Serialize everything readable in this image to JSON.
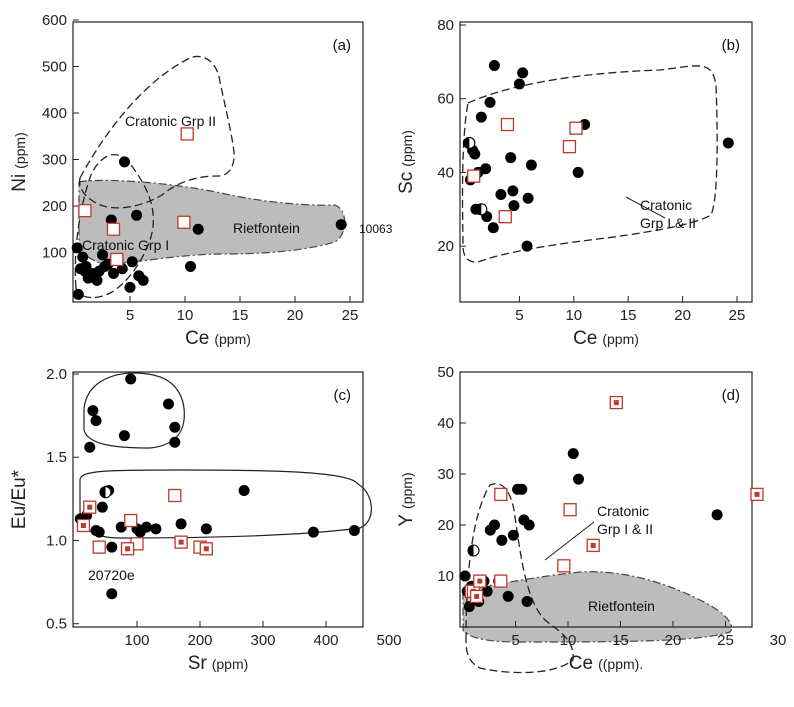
{
  "chart_data": [
    {
      "type": "scatter",
      "panel_label": "(a)",
      "x_label": "Ce",
      "x_unit": "(ppm)",
      "y_label": "Ni",
      "y_unit": "(ppm)",
      "xlim": [
        0,
        25
      ],
      "ylim": [
        0,
        600
      ],
      "xticks": [
        "5",
        "10",
        "15",
        "20",
        "25"
      ],
      "yticks": [
        "100",
        "200",
        "300",
        "400",
        "500",
        "600"
      ],
      "annotations": [
        "Cratonic Grp II",
        "Rietfontein",
        "Cratonic Grp I",
        "10063"
      ],
      "series": [
        {
          "marker": "filled-circle",
          "points": [
            [
              0.2,
              110
            ],
            [
              0.3,
              10
            ],
            [
              0.5,
              65
            ],
            [
              0.7,
              90
            ],
            [
              0.9,
              60
            ],
            [
              1.0,
              70
            ],
            [
              1.2,
              45
            ],
            [
              1.5,
              55
            ],
            [
              2.0,
              40
            ],
            [
              2.2,
              60
            ],
            [
              2.5,
              95
            ],
            [
              2.7,
              70
            ],
            [
              3.0,
              75
            ],
            [
              3.3,
              170
            ],
            [
              3.5,
              55
            ],
            [
              4.3,
              65
            ],
            [
              4.5,
              295
            ],
            [
              5.0,
              25
            ],
            [
              5.2,
              80
            ],
            [
              5.6,
              180
            ],
            [
              5.8,
              50
            ],
            [
              6.2,
              40
            ],
            [
              10.5,
              70
            ],
            [
              11.2,
              150
            ],
            [
              24.2,
              160
            ]
          ]
        },
        {
          "marker": "open-square",
          "points": [
            [
              0.9,
              190
            ],
            [
              3.5,
              150
            ],
            [
              3.8,
              85
            ],
            [
              9.9,
              165
            ],
            [
              10.2,
              355
            ]
          ]
        }
      ]
    },
    {
      "type": "scatter",
      "panel_label": "(b)",
      "x_label": "Ce",
      "x_unit": "(ppm)",
      "y_label": "Sc",
      "y_unit": "(ppm)",
      "xlim": [
        0,
        25
      ],
      "ylim": [
        10,
        80
      ],
      "xticks": [
        "5",
        "10",
        "15",
        "20",
        "25"
      ],
      "yticks": [
        "20",
        "40",
        "60",
        "80"
      ],
      "annotations": [
        "Cratonic",
        "Grp I & II"
      ],
      "series": [
        {
          "marker": "filled-circle",
          "points": [
            [
              0.3,
              48
            ],
            [
              0.5,
              38
            ],
            [
              0.7,
              46
            ],
            [
              0.9,
              45
            ],
            [
              1.0,
              30
            ],
            [
              1.2,
              40
            ],
            [
              1.5,
              55
            ],
            [
              1.9,
              41
            ],
            [
              2.0,
              28
            ],
            [
              2.3,
              59
            ],
            [
              2.6,
              25
            ],
            [
              2.7,
              69
            ],
            [
              3.3,
              34
            ],
            [
              4.2,
              44
            ],
            [
              4.4,
              35
            ],
            [
              4.5,
              31
            ],
            [
              5.0,
              64
            ],
            [
              5.3,
              67
            ],
            [
              5.7,
              20
            ],
            [
              5.8,
              33
            ],
            [
              6.1,
              42
            ],
            [
              10.4,
              40
            ],
            [
              11.0,
              53
            ],
            [
              24.2,
              48
            ]
          ]
        },
        {
          "marker": "half-circle",
          "points": [
            [
              0.4,
              48
            ],
            [
              1.5,
              30
            ]
          ]
        },
        {
          "marker": "open-square",
          "points": [
            [
              0.8,
              39
            ],
            [
              3.7,
              28
            ],
            [
              3.9,
              53
            ],
            [
              9.6,
              47
            ],
            [
              10.2,
              52
            ]
          ]
        }
      ]
    },
    {
      "type": "scatter",
      "panel_label": "(c)",
      "x_label": "Sr",
      "x_unit": "(ppm)",
      "y_label": "Eu/Eu*",
      "y_unit": "",
      "xlim": [
        0,
        500
      ],
      "ylim": [
        0.3,
        2.0
      ],
      "xticks": [
        "100",
        "200",
        "300",
        "400",
        "500"
      ],
      "yticks": [
        "0.5",
        "1.0",
        "1.5",
        "2.0"
      ],
      "annotations": [
        "20720e"
      ],
      "series": [
        {
          "marker": "filled-circle",
          "points": [
            [
              10,
              1.13
            ],
            [
              20,
              1.15
            ],
            [
              25,
              1.56
            ],
            [
              30,
              1.78
            ],
            [
              35,
              1.72
            ],
            [
              35,
              1.06
            ],
            [
              40,
              1.05
            ],
            [
              45,
              1.2
            ],
            [
              55,
              1.3
            ],
            [
              60,
              0.96
            ],
            [
              60,
              0.68
            ],
            [
              75,
              1.08
            ],
            [
              80,
              1.63
            ],
            [
              90,
              1.97
            ],
            [
              100,
              1.07
            ],
            [
              105,
              1.05
            ],
            [
              115,
              1.08
            ],
            [
              130,
              1.07
            ],
            [
              150,
              1.82
            ],
            [
              160,
              1.68
            ],
            [
              160,
              1.59
            ],
            [
              170,
              1.1
            ],
            [
              210,
              1.07
            ],
            [
              270,
              1.3
            ],
            [
              380,
              1.05
            ],
            [
              445,
              1.06
            ]
          ]
        },
        {
          "marker": "half-circle",
          "points": [
            [
              50,
              1.29
            ]
          ]
        },
        {
          "marker": "open-square",
          "points": [
            [
              40,
              0.96
            ],
            [
              90,
              1.12
            ],
            [
              100,
              0.98
            ],
            [
              160,
              1.27
            ],
            [
              200,
              0.96
            ]
          ]
        },
        {
          "marker": "dot-square",
          "points": [
            [
              15,
              1.09
            ],
            [
              25,
              1.2
            ],
            [
              85,
              0.95
            ],
            [
              170,
              0.99
            ],
            [
              210,
              0.95
            ]
          ]
        }
      ]
    },
    {
      "type": "scatter",
      "panel_label": "(d)",
      "x_label": "Ce",
      "x_unit": "((ppm).",
      "y_label": "Y",
      "y_unit": "(ppm)",
      "xlim": [
        0,
        30
      ],
      "ylim": [
        0,
        50
      ],
      "xticks": [
        "5",
        "10",
        "15",
        "20",
        "25",
        "30"
      ],
      "yticks": [
        "10",
        "20",
        "30",
        "40",
        "50"
      ],
      "annotations": [
        "Rietfontein",
        "Cratonic",
        "Grp I & II"
      ],
      "series": [
        {
          "marker": "filled-circle",
          "points": [
            [
              0.2,
              10
            ],
            [
              0.4,
              7
            ],
            [
              0.6,
              4
            ],
            [
              0.8,
              8
            ],
            [
              1.2,
              6
            ],
            [
              1.5,
              5
            ],
            [
              2.0,
              9
            ],
            [
              2.3,
              7
            ],
            [
              2.6,
              19
            ],
            [
              3.0,
              20
            ],
            [
              3.4,
              9
            ],
            [
              3.7,
              17
            ],
            [
              4.3,
              6
            ],
            [
              4.8,
              18
            ],
            [
              5.2,
              27
            ],
            [
              5.6,
              27
            ],
            [
              5.8,
              21
            ],
            [
              6.1,
              5
            ],
            [
              6.3,
              20
            ],
            [
              10.5,
              34
            ],
            [
              11.0,
              29
            ],
            [
              24.2,
              22
            ]
          ]
        },
        {
          "marker": "half-circle",
          "points": [
            [
              1.0,
              15
            ]
          ]
        },
        {
          "marker": "open-square",
          "points": [
            [
              3.6,
              26
            ],
            [
              3.6,
              9
            ],
            [
              9.6,
              12
            ],
            [
              10.2,
              23
            ]
          ]
        },
        {
          "marker": "dot-square",
          "points": [
            [
              0.8,
              7
            ],
            [
              1.0,
              7
            ],
            [
              1.3,
              6
            ],
            [
              1.6,
              9
            ],
            [
              12.4,
              16
            ],
            [
              14.6,
              44
            ],
            [
              28.0,
              26
            ]
          ]
        }
      ]
    }
  ]
}
